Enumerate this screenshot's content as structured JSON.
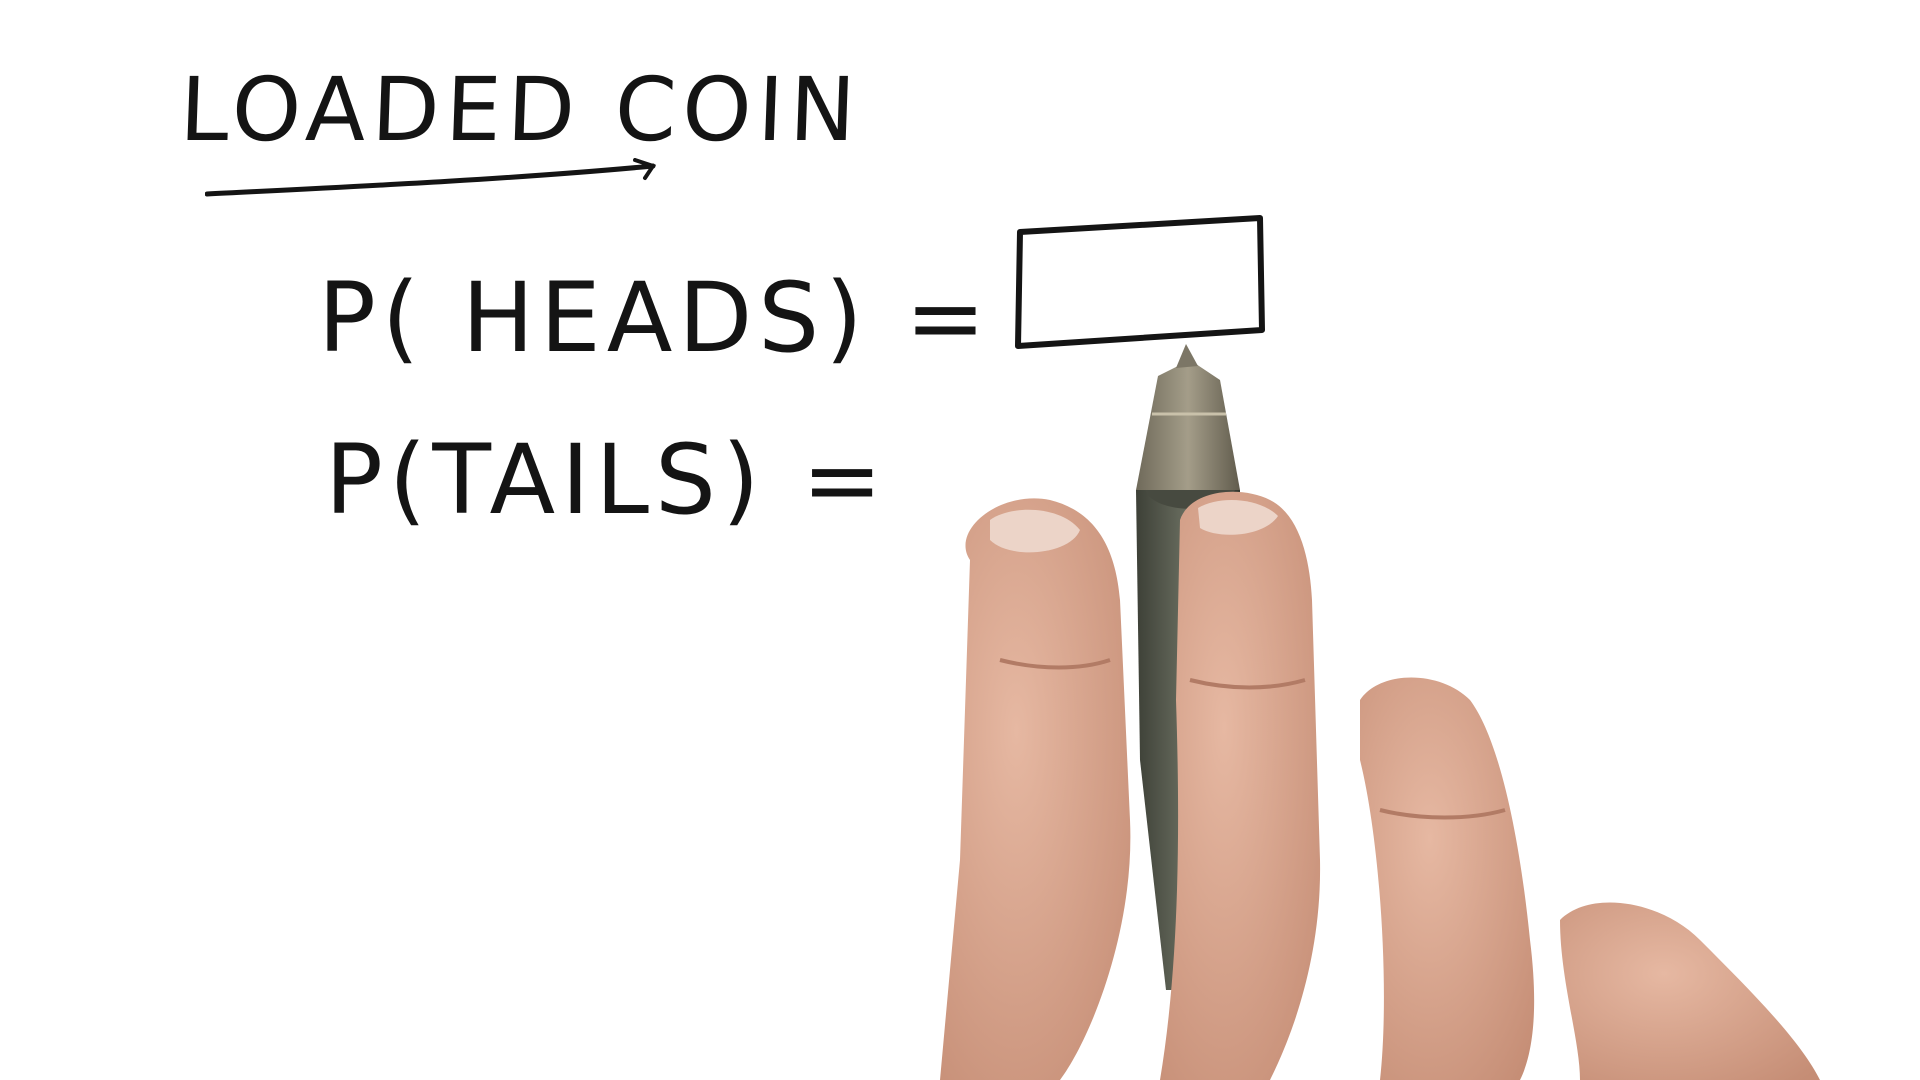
{
  "board": {
    "title": "LOADED COIN",
    "equations": {
      "heads": "P( HEADS) =",
      "tails": "P(TAILS) ="
    }
  },
  "colors": {
    "background": "#ffffff",
    "ink": "#141414",
    "pen_body": "#5b5f52",
    "pen_tip": "#8b8574",
    "skin": "#d9a792"
  },
  "icons": {
    "pen": "pen-icon",
    "hand": "hand-icon"
  }
}
